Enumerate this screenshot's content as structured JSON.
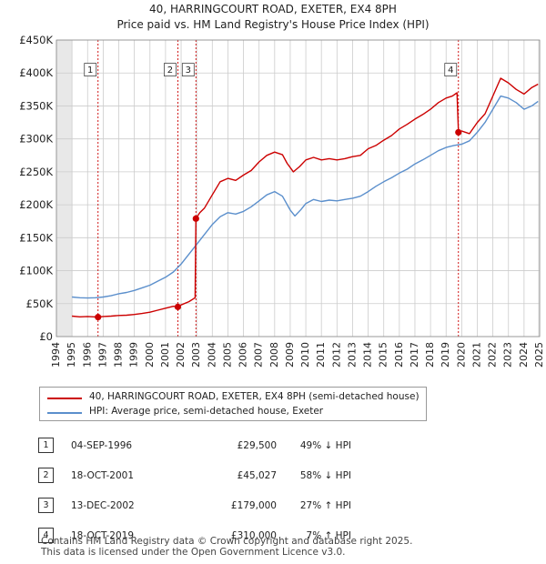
{
  "chart_data": {
    "type": "line",
    "title": "40, HARRINGCOURT ROAD, EXETER, EX4 8PH",
    "subtitle": "Price paid vs. HM Land Registry's House Price Index (HPI)",
    "xlim": [
      1994,
      2025
    ],
    "ylim": [
      0,
      450000
    ],
    "x_ticks": [
      1994,
      1995,
      1996,
      1997,
      1998,
      1999,
      2000,
      2001,
      2002,
      2003,
      2004,
      2005,
      2006,
      2007,
      2008,
      2009,
      2010,
      2011,
      2012,
      2013,
      2014,
      2015,
      2016,
      2017,
      2018,
      2019,
      2020,
      2021,
      2022,
      2023,
      2024,
      2025
    ],
    "y_ticks": [
      {
        "value": 0,
        "label": "£0"
      },
      {
        "value": 50000,
        "label": "£50K"
      },
      {
        "value": 100000,
        "label": "£100K"
      },
      {
        "value": 150000,
        "label": "£150K"
      },
      {
        "value": 200000,
        "label": "£200K"
      },
      {
        "value": 250000,
        "label": "£250K"
      },
      {
        "value": 300000,
        "label": "£300K"
      },
      {
        "value": 350000,
        "label": "£350K"
      },
      {
        "value": 400000,
        "label": "£400K"
      },
      {
        "value": 450000,
        "label": "£450K"
      }
    ],
    "series": [
      {
        "name": "40, HARRINGCOURT ROAD, EXETER, EX4 8PH (semi-detached house)",
        "color": "#cc0000",
        "points": [
          [
            1995.0,
            31000
          ],
          [
            1995.5,
            30000
          ],
          [
            1996.0,
            30500
          ],
          [
            1996.67,
            29500
          ],
          [
            1997.0,
            30500
          ],
          [
            1997.5,
            31000
          ],
          [
            1998.0,
            32000
          ],
          [
            1998.5,
            32500
          ],
          [
            1999.0,
            33500
          ],
          [
            1999.5,
            35000
          ],
          [
            2000.0,
            37000
          ],
          [
            2000.5,
            40000
          ],
          [
            2001.0,
            43000
          ],
          [
            2001.5,
            46000
          ],
          [
            2001.79,
            45027
          ],
          [
            2002.0,
            48000
          ],
          [
            2002.5,
            53000
          ],
          [
            2002.9,
            59000
          ],
          [
            2002.95,
            179000
          ],
          [
            2003.2,
            188000
          ],
          [
            2003.5,
            195000
          ],
          [
            2004.0,
            215000
          ],
          [
            2004.5,
            235000
          ],
          [
            2005.0,
            240000
          ],
          [
            2005.5,
            237000
          ],
          [
            2006.0,
            245000
          ],
          [
            2006.5,
            252000
          ],
          [
            2007.0,
            265000
          ],
          [
            2007.5,
            275000
          ],
          [
            2008.0,
            280000
          ],
          [
            2008.5,
            276000
          ],
          [
            2008.8,
            263000
          ],
          [
            2009.2,
            250000
          ],
          [
            2009.6,
            258000
          ],
          [
            2010.0,
            268000
          ],
          [
            2010.5,
            272000
          ],
          [
            2011.0,
            268000
          ],
          [
            2011.5,
            270000
          ],
          [
            2012.0,
            268000
          ],
          [
            2012.5,
            270000
          ],
          [
            2013.0,
            273000
          ],
          [
            2013.5,
            275000
          ],
          [
            2014.0,
            285000
          ],
          [
            2014.5,
            290000
          ],
          [
            2015.0,
            298000
          ],
          [
            2015.5,
            305000
          ],
          [
            2016.0,
            315000
          ],
          [
            2016.5,
            322000
          ],
          [
            2017.0,
            330000
          ],
          [
            2017.5,
            337000
          ],
          [
            2018.0,
            345000
          ],
          [
            2018.5,
            355000
          ],
          [
            2019.0,
            362000
          ],
          [
            2019.4,
            365000
          ],
          [
            2019.7,
            370000
          ],
          [
            2019.79,
            310000
          ],
          [
            2020.0,
            312000
          ],
          [
            2020.5,
            308000
          ],
          [
            2021.0,
            325000
          ],
          [
            2021.5,
            338000
          ],
          [
            2022.0,
            365000
          ],
          [
            2022.5,
            392000
          ],
          [
            2023.0,
            385000
          ],
          [
            2023.5,
            375000
          ],
          [
            2024.0,
            368000
          ],
          [
            2024.5,
            378000
          ],
          [
            2024.9,
            383000
          ]
        ]
      },
      {
        "name": "HPI: Average price, semi-detached house, Exeter",
        "color": "#5b8fcc",
        "points": [
          [
            1995.0,
            60000
          ],
          [
            1995.5,
            59000
          ],
          [
            1996.0,
            58500
          ],
          [
            1996.5,
            59000
          ],
          [
            1997.0,
            60000
          ],
          [
            1997.5,
            62000
          ],
          [
            1998.0,
            65000
          ],
          [
            1998.5,
            67000
          ],
          [
            1999.0,
            70000
          ],
          [
            1999.5,
            74000
          ],
          [
            2000.0,
            78000
          ],
          [
            2000.5,
            84000
          ],
          [
            2001.0,
            90000
          ],
          [
            2001.5,
            98000
          ],
          [
            2002.0,
            110000
          ],
          [
            2002.5,
            125000
          ],
          [
            2003.0,
            140000
          ],
          [
            2003.5,
            155000
          ],
          [
            2004.0,
            170000
          ],
          [
            2004.5,
            182000
          ],
          [
            2005.0,
            188000
          ],
          [
            2005.5,
            186000
          ],
          [
            2006.0,
            190000
          ],
          [
            2006.5,
            197000
          ],
          [
            2007.0,
            206000
          ],
          [
            2007.5,
            215000
          ],
          [
            2008.0,
            220000
          ],
          [
            2008.5,
            213000
          ],
          [
            2009.0,
            192000
          ],
          [
            2009.3,
            183000
          ],
          [
            2009.7,
            193000
          ],
          [
            2010.0,
            202000
          ],
          [
            2010.5,
            208000
          ],
          [
            2011.0,
            205000
          ],
          [
            2011.5,
            207000
          ],
          [
            2012.0,
            206000
          ],
          [
            2012.5,
            208000
          ],
          [
            2013.0,
            210000
          ],
          [
            2013.5,
            213000
          ],
          [
            2014.0,
            220000
          ],
          [
            2014.5,
            228000
          ],
          [
            2015.0,
            235000
          ],
          [
            2015.5,
            241000
          ],
          [
            2016.0,
            248000
          ],
          [
            2016.5,
            254000
          ],
          [
            2017.0,
            262000
          ],
          [
            2017.5,
            268000
          ],
          [
            2018.0,
            275000
          ],
          [
            2018.5,
            282000
          ],
          [
            2019.0,
            287000
          ],
          [
            2019.5,
            290000
          ],
          [
            2020.0,
            292000
          ],
          [
            2020.5,
            297000
          ],
          [
            2021.0,
            310000
          ],
          [
            2021.5,
            325000
          ],
          [
            2022.0,
            345000
          ],
          [
            2022.5,
            365000
          ],
          [
            2023.0,
            362000
          ],
          [
            2023.5,
            355000
          ],
          [
            2024.0,
            345000
          ],
          [
            2024.5,
            350000
          ],
          [
            2024.9,
            357000
          ]
        ]
      }
    ],
    "transactions": [
      {
        "label": "1",
        "date": "04-SEP-1996",
        "x": 1996.67,
        "price_value": 29500,
        "price": "£29,500",
        "hpi": "49% ↓ HPI"
      },
      {
        "label": "2",
        "date": "18-OCT-2001",
        "x": 2001.79,
        "price_value": 45027,
        "price": "£45,027",
        "hpi": "58% ↓ HPI"
      },
      {
        "label": "3",
        "date": "13-DEC-2002",
        "x": 2002.95,
        "price_value": 179000,
        "price": "£179,000",
        "hpi": "27% ↑ HPI"
      },
      {
        "label": "4",
        "date": "18-OCT-2019",
        "x": 2019.79,
        "price_value": 310000,
        "price": "£310,000",
        "hpi": "7% ↑ HPI"
      }
    ],
    "marker_label_value": 405000
  },
  "footer": {
    "line1": "Contains HM Land Registry data © Crown copyright and database right 2025.",
    "line2": "This data is licensed under the Open Government Licence v3.0."
  }
}
